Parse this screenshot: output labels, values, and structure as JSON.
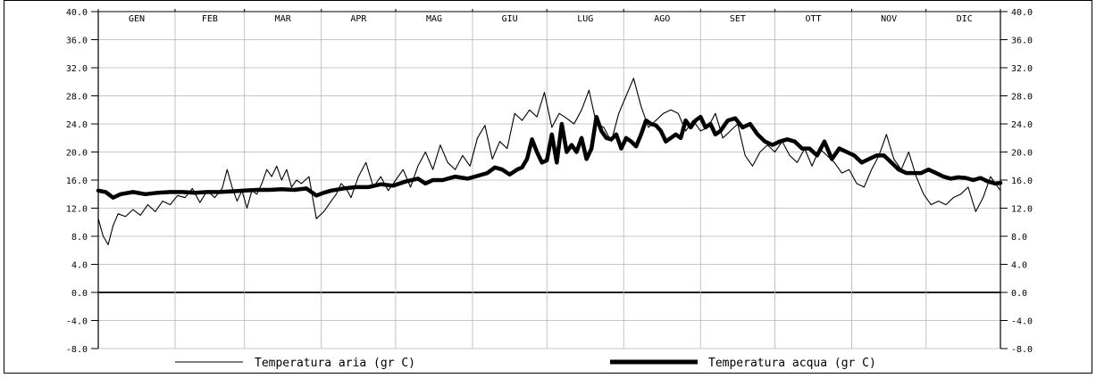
{
  "chart_data": {
    "type": "line",
    "months": [
      "GEN",
      "FEB",
      "MAR",
      "APR",
      "MAG",
      "GIU",
      "LUG",
      "AGO",
      "SET",
      "OTT",
      "NOV",
      "DIC"
    ],
    "x_unit": "day of year",
    "x_range": [
      1,
      365
    ],
    "ylim": [
      -8,
      40
    ],
    "yticks": [
      -8,
      -4,
      0,
      4,
      8,
      12,
      16,
      20,
      24,
      28,
      32,
      36,
      40
    ],
    "ytick_labels": [
      "-8.0",
      "-4.0",
      "0.0",
      "4.0",
      "8.0",
      "12.0",
      "16.0",
      "20.0",
      "24.0",
      "28.0",
      "32.0",
      "36.0",
      "40.0"
    ],
    "grid": true,
    "legend_position": "bottom",
    "series": [
      {
        "name": "Temperatura aria (gr C)",
        "style": "thin",
        "x": [
          1,
          3,
          5,
          7,
          9,
          12,
          15,
          18,
          21,
          24,
          27,
          30,
          33,
          36,
          39,
          42,
          45,
          48,
          51,
          53,
          55,
          57,
          59,
          61,
          63,
          65,
          67,
          69,
          71,
          73,
          75,
          77,
          79,
          81,
          83,
          86,
          89,
          92,
          95,
          97,
          99,
          101,
          103,
          106,
          109,
          112,
          115,
          118,
          121,
          124,
          127,
          130,
          133,
          136,
          139,
          142,
          145,
          148,
          151,
          154,
          157,
          160,
          163,
          166,
          169,
          172,
          175,
          178,
          181,
          184,
          187,
          190,
          193,
          196,
          199,
          202,
          205,
          208,
          211,
          214,
          217,
          220,
          223,
          226,
          229,
          232,
          235,
          238,
          241,
          244,
          247,
          250,
          253,
          256,
          259,
          262,
          265,
          268,
          271,
          274,
          277,
          280,
          283,
          286,
          289,
          292,
          295,
          298,
          301,
          304,
          307,
          310,
          313,
          316,
          319,
          322,
          325,
          328,
          331,
          334,
          337,
          340,
          343,
          346,
          349,
          352,
          355,
          358,
          361,
          365
        ],
        "values": [
          10.5,
          8.0,
          6.8,
          9.5,
          11.2,
          10.8,
          11.8,
          11.0,
          12.5,
          11.5,
          13.0,
          12.5,
          13.8,
          13.5,
          14.8,
          12.8,
          14.5,
          13.5,
          14.8,
          17.5,
          15.0,
          13.0,
          14.5,
          12.0,
          14.5,
          14.0,
          15.5,
          17.5,
          16.5,
          18.0,
          16.0,
          17.5,
          15.0,
          16.0,
          15.5,
          16.5,
          10.5,
          11.5,
          13.0,
          14.0,
          15.5,
          14.8,
          13.5,
          16.5,
          18.5,
          15.0,
          16.5,
          14.5,
          16.0,
          17.5,
          15.0,
          18.0,
          20.0,
          17.5,
          21.0,
          18.5,
          17.5,
          19.5,
          18.0,
          22.0,
          23.8,
          19.0,
          21.5,
          20.5,
          25.5,
          24.5,
          26.0,
          25.0,
          28.5,
          23.5,
          25.5,
          24.8,
          24.0,
          26.0,
          28.8,
          24.0,
          23.5,
          21.5,
          25.5,
          28.0,
          30.5,
          26.5,
          23.5,
          24.5,
          25.5,
          26.0,
          25.5,
          23.0,
          24.5,
          23.0,
          23.5,
          25.5,
          22.0,
          23.0,
          24.0,
          19.5,
          18.0,
          20.0,
          21.0,
          20.0,
          21.5,
          19.5,
          18.5,
          20.5,
          18.0,
          20.5,
          19.5,
          18.5,
          17.0,
          17.5,
          15.5,
          15.0,
          17.5,
          19.5,
          22.5,
          19.0,
          17.5,
          20.0,
          16.5,
          14.0,
          12.5,
          13.0,
          12.5,
          13.5,
          14.0,
          15.0,
          11.5,
          13.5,
          16.5,
          14.5
        ]
      },
      {
        "name": "Temperatura acqua (gr C)",
        "style": "thick",
        "x": [
          1,
          4,
          7,
          10,
          15,
          20,
          25,
          30,
          35,
          40,
          45,
          50,
          55,
          60,
          65,
          70,
          75,
          80,
          85,
          89,
          92,
          95,
          100,
          105,
          110,
          115,
          120,
          125,
          130,
          133,
          136,
          140,
          145,
          150,
          155,
          158,
          161,
          164,
          167,
          170,
          172,
          174,
          176,
          178,
          180,
          182,
          184,
          186,
          188,
          190,
          192,
          194,
          196,
          198,
          200,
          202,
          204,
          206,
          208,
          210,
          212,
          214,
          216,
          218,
          220,
          222,
          224,
          226,
          228,
          230,
          232,
          234,
          236,
          238,
          240,
          242,
          244,
          246,
          248,
          250,
          252,
          255,
          258,
          261,
          264,
          267,
          270,
          273,
          276,
          279,
          282,
          285,
          288,
          291,
          294,
          297,
          300,
          303,
          306,
          309,
          312,
          315,
          318,
          321,
          324,
          327,
          330,
          333,
          336,
          339,
          342,
          345,
          348,
          351,
          354,
          357,
          360,
          363,
          365
        ],
        "values": [
          14.5,
          14.3,
          13.5,
          14.0,
          14.3,
          14.0,
          14.2,
          14.3,
          14.3,
          14.2,
          14.3,
          14.3,
          14.4,
          14.5,
          14.6,
          14.6,
          14.7,
          14.6,
          14.8,
          13.8,
          14.2,
          14.5,
          14.8,
          15.0,
          15.0,
          15.4,
          15.2,
          15.8,
          16.2,
          15.5,
          16.0,
          16.0,
          16.5,
          16.2,
          16.7,
          17.0,
          17.8,
          17.5,
          16.8,
          17.5,
          17.8,
          19.0,
          21.8,
          20.0,
          18.5,
          18.8,
          22.5,
          18.5,
          24.0,
          20.0,
          21.0,
          20.0,
          22.0,
          19.0,
          20.5,
          25.0,
          23.0,
          22.0,
          21.8,
          22.5,
          20.5,
          22.0,
          21.5,
          20.8,
          22.5,
          24.5,
          24.0,
          23.8,
          23.0,
          21.5,
          22.0,
          22.5,
          22.0,
          24.5,
          23.5,
          24.5,
          25.0,
          23.5,
          24.0,
          22.5,
          23.0,
          24.5,
          24.8,
          23.5,
          24.0,
          22.5,
          21.5,
          21.0,
          21.5,
          21.8,
          21.5,
          20.5,
          20.5,
          19.5,
          21.5,
          19.0,
          20.5,
          20.0,
          19.5,
          18.5,
          19.0,
          19.5,
          19.5,
          18.5,
          17.5,
          17.0,
          17.0,
          17.0,
          17.5,
          17.0,
          16.5,
          16.2,
          16.4,
          16.3,
          16.0,
          16.3,
          15.8,
          15.5,
          15.6
        ]
      }
    ]
  }
}
